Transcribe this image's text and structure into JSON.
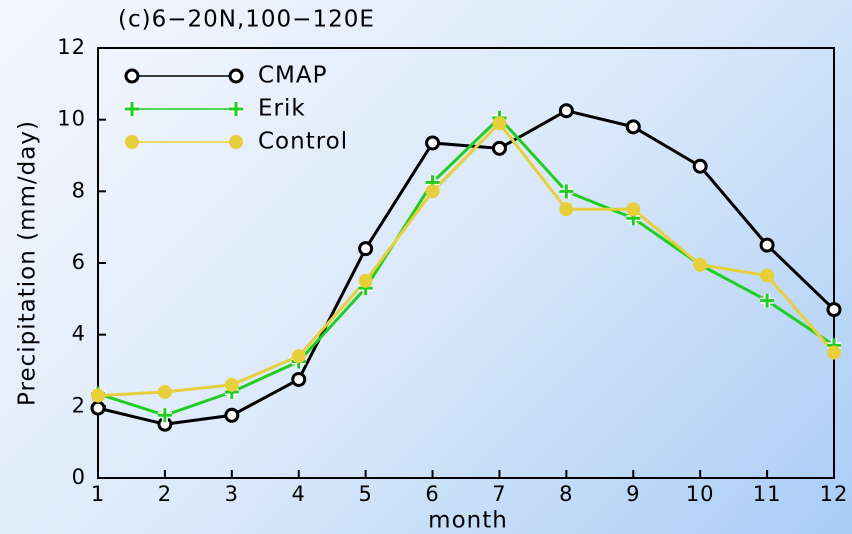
{
  "chart_data": {
    "type": "line",
    "title": "(c)6−20N,100−120E",
    "xlabel": "month",
    "ylabel": "Precipitation (mm/day)",
    "x": [
      1,
      2,
      3,
      4,
      5,
      6,
      7,
      8,
      9,
      10,
      11,
      12
    ],
    "xlim": [
      1,
      12
    ],
    "xticks": [
      1,
      2,
      3,
      4,
      5,
      6,
      7,
      8,
      9,
      10,
      11,
      12
    ],
    "ylim": [
      0,
      12
    ],
    "yticks": [
      0,
      2,
      4,
      6,
      8,
      10,
      12
    ],
    "legend": "upper left",
    "series": [
      {
        "name": "CMAP",
        "color": "#000000",
        "marker": "open-circle",
        "values": [
          1.95,
          1.5,
          1.75,
          2.75,
          6.4,
          9.35,
          9.2,
          10.25,
          9.8,
          8.7,
          6.5,
          4.7
        ]
      },
      {
        "name": "Erik",
        "color": "#22cc22",
        "marker": "plus",
        "values": [
          2.35,
          1.75,
          2.4,
          3.25,
          5.3,
          8.25,
          10.05,
          8.0,
          7.25,
          5.95,
          4.95,
          3.7
        ]
      },
      {
        "name": "Control",
        "color": "#e6cf3a",
        "marker": "filled-circle",
        "values": [
          2.3,
          2.4,
          2.6,
          3.4,
          5.5,
          8.0,
          9.9,
          7.5,
          7.5,
          5.95,
          5.65,
          3.5
        ]
      }
    ]
  }
}
